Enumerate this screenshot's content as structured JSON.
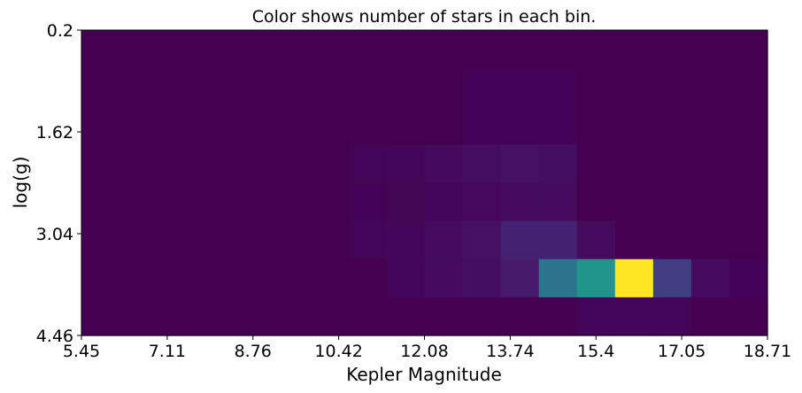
{
  "chart_data": {
    "type": "heatmap",
    "title": "Color shows number of stars in each bin.",
    "xlabel": "Kepler Magnitude",
    "ylabel": "log(g)",
    "x_ticks": [
      "5.45",
      "7.11",
      "8.76",
      "10.42",
      "12.08",
      "13.74",
      "15.4",
      "17.05",
      "18.71"
    ],
    "y_ticks": [
      "0.2",
      "1.62",
      "3.04",
      "4.46"
    ],
    "xlim": [
      5.45,
      18.71
    ],
    "ylim": [
      0.2,
      4.46
    ],
    "y_inverted": true,
    "x_bins": 18,
    "y_bins": 8,
    "grid": false,
    "colormap": "viridis",
    "color_stops": [
      "#440154",
      "#482878",
      "#3e4989",
      "#31688e",
      "#26828e",
      "#1f9e89",
      "#35b779",
      "#6ece58",
      "#b5de2b",
      "#fde725"
    ],
    "counts": [
      [
        0,
        0,
        0,
        0,
        0,
        0,
        0,
        0,
        0,
        0,
        0,
        0,
        0,
        0,
        0,
        0,
        0,
        0
      ],
      [
        0,
        0,
        0,
        0,
        0,
        0,
        0,
        0,
        0,
        0,
        0.5,
        0.5,
        0.5,
        0,
        0,
        0,
        0,
        0
      ],
      [
        0,
        0,
        0,
        0,
        0,
        0,
        0,
        0,
        0,
        0,
        0.5,
        0.5,
        0.5,
        0,
        0,
        0,
        0,
        0
      ],
      [
        0,
        0,
        0,
        0,
        0,
        0,
        0,
        0.8,
        1.5,
        2.5,
        3.5,
        4.5,
        4,
        0,
        0,
        0,
        0,
        0
      ],
      [
        0,
        0,
        0,
        0,
        0,
        0,
        0,
        0.5,
        1,
        1.5,
        2,
        3,
        3,
        0,
        0,
        0,
        0,
        0
      ],
      [
        0,
        0,
        0,
        0,
        0,
        0,
        0,
        0.8,
        1.5,
        3,
        4.5,
        9,
        9,
        3,
        0,
        0,
        0,
        0
      ],
      [
        0,
        0,
        0,
        0,
        0,
        0,
        0,
        0,
        1.5,
        3,
        4,
        7,
        38,
        52,
        100,
        19,
        3,
        0.5
      ],
      [
        0,
        0,
        0,
        0,
        0,
        0,
        0,
        0,
        0,
        0,
        0,
        0,
        0,
        0.8,
        1.5,
        0.8,
        0,
        0
      ]
    ]
  }
}
